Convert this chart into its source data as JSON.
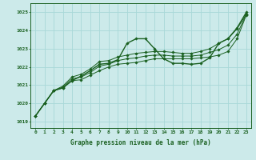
{
  "x": [
    0,
    1,
    2,
    3,
    4,
    5,
    6,
    7,
    8,
    9,
    10,
    11,
    12,
    13,
    14,
    15,
    16,
    17,
    18,
    19,
    20,
    21,
    22,
    23
  ],
  "line_main": [
    1019.3,
    1020.0,
    1020.7,
    1020.85,
    1021.25,
    1021.5,
    1021.8,
    1022.15,
    1022.2,
    1022.4,
    1023.3,
    1023.55,
    1023.55,
    1023.0,
    1022.45,
    1022.2,
    1022.2,
    1022.15,
    1022.2,
    1022.5,
    1023.3,
    1023.55,
    1024.15,
    1025.0
  ],
  "line_min": [
    1019.3,
    1020.0,
    1020.7,
    1020.85,
    1021.25,
    1021.3,
    1021.55,
    1021.8,
    1022.0,
    1022.15,
    1022.2,
    1022.25,
    1022.35,
    1022.45,
    1022.45,
    1022.45,
    1022.45,
    1022.45,
    1022.5,
    1022.55,
    1022.65,
    1022.85,
    1023.55,
    1024.85
  ],
  "line_max": [
    1019.3,
    1020.0,
    1020.7,
    1020.95,
    1021.45,
    1021.6,
    1021.9,
    1022.3,
    1022.35,
    1022.55,
    1022.65,
    1022.75,
    1022.8,
    1022.85,
    1022.85,
    1022.8,
    1022.75,
    1022.75,
    1022.85,
    1023.0,
    1023.3,
    1023.55,
    1024.1,
    1024.9
  ],
  "line_avg": [
    1019.3,
    1020.0,
    1020.7,
    1020.9,
    1021.35,
    1021.45,
    1021.7,
    1022.05,
    1022.15,
    1022.35,
    1022.45,
    1022.5,
    1022.6,
    1022.65,
    1022.65,
    1022.6,
    1022.6,
    1022.6,
    1022.65,
    1022.8,
    1022.95,
    1023.2,
    1023.8,
    1024.9
  ],
  "xlim": [
    -0.5,
    23.5
  ],
  "ylim": [
    1018.65,
    1025.5
  ],
  "yticks": [
    1019,
    1020,
    1021,
    1022,
    1023,
    1024,
    1025
  ],
  "xticks": [
    0,
    1,
    2,
    3,
    4,
    5,
    6,
    7,
    8,
    9,
    10,
    11,
    12,
    13,
    14,
    15,
    16,
    17,
    18,
    19,
    20,
    21,
    22,
    23
  ],
  "xlabel": "Graphe pression niveau de la mer (hPa)",
  "grid_color": "#a8d8d8",
  "bg_color": "#cceaea",
  "line_color": "#1a6020",
  "marker": "D",
  "markersize": 1.8,
  "linewidth_main": 1.0,
  "linewidth_other": 0.7,
  "tick_fontsize": 4.5,
  "xlabel_fontsize": 5.5
}
